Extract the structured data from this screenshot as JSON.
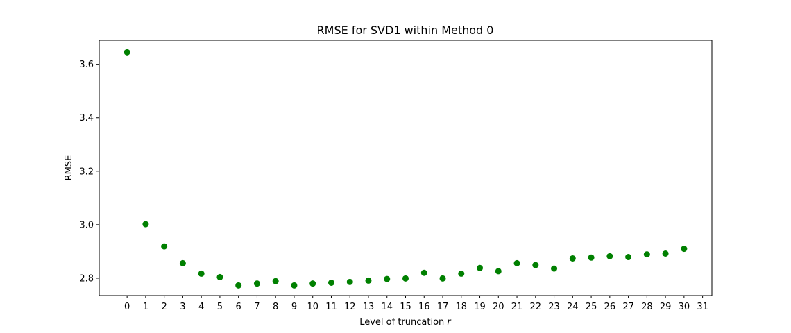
{
  "chart_data": {
    "type": "scatter",
    "title": "RMSE for SVD1 within Method 0",
    "xlabel": "Level of truncation",
    "xlabel_var": "r",
    "ylabel": "RMSE",
    "xlim": [
      -1.5,
      31.5
    ],
    "ylim": [
      2.735,
      3.69
    ],
    "x_ticks": [
      0,
      1,
      2,
      3,
      4,
      5,
      6,
      7,
      8,
      9,
      10,
      11,
      12,
      13,
      14,
      15,
      16,
      17,
      18,
      19,
      20,
      21,
      22,
      23,
      24,
      25,
      26,
      27,
      28,
      29,
      30,
      31
    ],
    "y_ticks": [
      2.8,
      3.0,
      3.2,
      3.4,
      3.6
    ],
    "y_tick_labels": [
      "2.8",
      "3.0",
      "3.2",
      "3.4",
      "3.6"
    ],
    "grid": false,
    "marker_color": "#008000",
    "series": [
      {
        "x": [
          0,
          1,
          2,
          3,
          4,
          5,
          6,
          7,
          8,
          9,
          10,
          11,
          12,
          13,
          14,
          15,
          16,
          17,
          18,
          19,
          20,
          21,
          22,
          23,
          24,
          25,
          26,
          27,
          28,
          29,
          30
        ],
        "values": [
          3.645,
          3.002,
          2.919,
          2.856,
          2.817,
          2.804,
          2.773,
          2.78,
          2.789,
          2.773,
          2.78,
          2.783,
          2.786,
          2.791,
          2.797,
          2.799,
          2.82,
          2.799,
          2.817,
          2.838,
          2.826,
          2.856,
          2.849,
          2.836,
          2.874,
          2.877,
          2.882,
          2.879,
          2.889,
          2.892,
          2.91
        ]
      }
    ]
  }
}
